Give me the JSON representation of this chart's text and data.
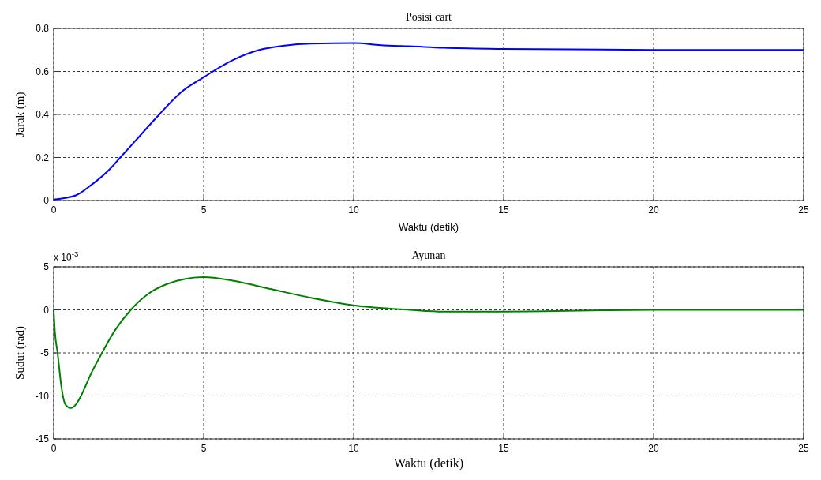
{
  "chart_data": [
    {
      "type": "line",
      "title": "Posisi cart",
      "xlabel": "Waktu (detik)",
      "ylabel": "Jarak (m)",
      "xlim": [
        0,
        25
      ],
      "xticks": [
        0,
        5,
        10,
        15,
        20,
        25
      ],
      "ylim": [
        0,
        0.8
      ],
      "yticks": [
        0,
        0.2,
        0.4,
        0.6,
        0.8
      ],
      "grid": true,
      "series": [
        {
          "color": "#0000ff",
          "x": [
            0,
            0.74,
            1.26,
            1.87,
            2.22,
            2.74,
            3.52,
            4.22,
            5,
            5.96,
            6.83,
            7.7,
            8.57,
            10.04,
            10.9,
            11.87,
            13,
            15,
            20,
            25
          ],
          "values": [
            0.005,
            0.024,
            0.073,
            0.146,
            0.2,
            0.28,
            0.4,
            0.5,
            0.573,
            0.652,
            0.699,
            0.72,
            0.729,
            0.732,
            0.722,
            0.717,
            0.71,
            0.705,
            0.7,
            0.7
          ]
        }
      ]
    },
    {
      "type": "line",
      "title": "Ayunan",
      "xlabel": "Waktu (detik)",
      "ylabel": "Sudut (rad)",
      "annotations": [
        "x 10$^{-3}$"
      ],
      "xlim": [
        0,
        25
      ],
      "xticks": [
        0,
        5,
        10,
        15,
        20,
        25
      ],
      "ylim": [
        -15,
        5
      ],
      "yticks": [
        -15,
        -10,
        -5,
        0,
        5
      ],
      "grid": true,
      "series": [
        {
          "color": "#008000",
          "x": [
            0,
            0.04,
            0.13,
            0.26,
            0.39,
            0.57,
            0.74,
            0.91,
            1.26,
            1.61,
            2.04,
            2.57,
            3.17,
            3.78,
            4.39,
            5,
            5.96,
            7.26,
            8.57,
            10.04,
            11.87,
            13,
            15,
            20,
            25
          ],
          "values": [
            0,
            -2.5,
            -5,
            -9,
            -11,
            -11.4,
            -11,
            -10,
            -7.3,
            -5,
            -2.4,
            0,
            1.9,
            3.0,
            3.6,
            3.8,
            3.4,
            2.4,
            1.4,
            0.5,
            0,
            -0.2,
            -0.2,
            0,
            0
          ]
        }
      ]
    }
  ]
}
